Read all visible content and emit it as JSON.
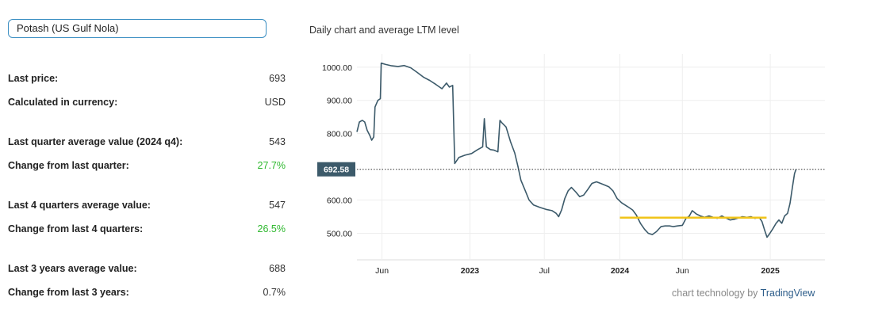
{
  "selector": {
    "value": "Potash (US Gulf Nola)"
  },
  "stats": [
    {
      "label": "Last price:",
      "value": "693",
      "positive": false
    },
    {
      "label": "Calculated in currency:",
      "value": "USD",
      "positive": false
    },
    {
      "label": "Last quarter average value (2024 q4):",
      "value": "543",
      "positive": false
    },
    {
      "label": "Change from last quarter:",
      "value": "27.7%",
      "positive": true
    },
    {
      "label": "Last 4 quarters average value:",
      "value": "547",
      "positive": false
    },
    {
      "label": "Change from last 4 quarters:",
      "value": "26.5%",
      "positive": true
    },
    {
      "label": "Last 3 years average value:",
      "value": "688",
      "positive": false
    },
    {
      "label": "Change from last 3 years:",
      "value": "0.7%",
      "positive": false
    }
  ],
  "chart_title": "Daily chart and average LTM level",
  "credit": {
    "prefix": "chart technology by",
    "brand": "TradingView"
  },
  "colors": {
    "line": "#3c5a6a",
    "ltm": "#f0c419",
    "tag_bg": "#3c5a6a",
    "grid": "#eeeeee",
    "accent": "#3a8ec2",
    "positive": "#2eb82e"
  },
  "chart_data": {
    "type": "line",
    "ylim": [
      420,
      1040
    ],
    "y_ticks": [
      {
        "label": "1000.00",
        "value": 1000
      },
      {
        "label": "900.00",
        "value": 900
      },
      {
        "label": "800.00",
        "value": 800
      },
      {
        "label": "600.00",
        "value": 600
      },
      {
        "label": "500.00",
        "value": 500
      }
    ],
    "xlim": [
      "2022-04-01",
      "2025-05-14"
    ],
    "x_ticks": [
      {
        "label": "Jun",
        "date": "2022-06-01",
        "bold": false
      },
      {
        "label": "2023",
        "date": "2023-01-01",
        "bold": true
      },
      {
        "label": "Jul",
        "date": "2023-07-01",
        "bold": false
      },
      {
        "label": "2024",
        "date": "2024-01-01",
        "bold": true
      },
      {
        "label": "Jun",
        "date": "2024-06-01",
        "bold": false
      },
      {
        "label": "2025",
        "date": "2025-01-01",
        "bold": true
      }
    ],
    "last_price_label": "692.58",
    "last_price": 692.58,
    "series": [
      {
        "points": [
          [
            "2022-04-01",
            805
          ],
          [
            "2022-04-07",
            835
          ],
          [
            "2022-04-14",
            840
          ],
          [
            "2022-04-20",
            835
          ],
          [
            "2022-04-26",
            810
          ],
          [
            "2022-05-02",
            795
          ],
          [
            "2022-05-07",
            780
          ],
          [
            "2022-05-12",
            790
          ],
          [
            "2022-05-15",
            880
          ],
          [
            "2022-05-22",
            900
          ],
          [
            "2022-05-28",
            905
          ],
          [
            "2022-05-30",
            1012
          ],
          [
            "2022-06-10",
            1008
          ],
          [
            "2022-06-25",
            1004
          ],
          [
            "2022-07-10",
            1002
          ],
          [
            "2022-07-25",
            1005
          ],
          [
            "2022-08-10",
            998
          ],
          [
            "2022-08-25",
            985
          ],
          [
            "2022-09-10",
            970
          ],
          [
            "2022-09-25",
            960
          ],
          [
            "2022-10-10",
            948
          ],
          [
            "2022-10-25",
            935
          ],
          [
            "2022-11-05",
            952
          ],
          [
            "2022-11-12",
            940
          ],
          [
            "2022-11-20",
            945
          ],
          [
            "2022-11-25",
            710
          ],
          [
            "2022-12-05",
            728
          ],
          [
            "2022-12-20",
            735
          ],
          [
            "2023-01-05",
            740
          ],
          [
            "2023-01-20",
            752
          ],
          [
            "2023-02-01",
            760
          ],
          [
            "2023-02-05",
            845
          ],
          [
            "2023-02-10",
            760
          ],
          [
            "2023-02-20",
            752
          ],
          [
            "2023-03-01",
            750
          ],
          [
            "2023-03-10",
            745
          ],
          [
            "2023-03-15",
            840
          ],
          [
            "2023-03-20",
            832
          ],
          [
            "2023-03-30",
            820
          ],
          [
            "2023-04-10",
            775
          ],
          [
            "2023-04-20",
            742
          ],
          [
            "2023-04-28",
            700
          ],
          [
            "2023-05-05",
            660
          ],
          [
            "2023-05-15",
            630
          ],
          [
            "2023-05-25",
            600
          ],
          [
            "2023-06-05",
            585
          ],
          [
            "2023-06-20",
            578
          ],
          [
            "2023-07-05",
            572
          ],
          [
            "2023-07-20",
            568
          ],
          [
            "2023-07-30",
            560
          ],
          [
            "2023-08-05",
            550
          ],
          [
            "2023-08-12",
            570
          ],
          [
            "2023-08-20",
            605
          ],
          [
            "2023-08-28",
            628
          ],
          [
            "2023-09-05",
            638
          ],
          [
            "2023-09-15",
            625
          ],
          [
            "2023-09-25",
            610
          ],
          [
            "2023-10-05",
            615
          ],
          [
            "2023-10-15",
            632
          ],
          [
            "2023-10-25",
            650
          ],
          [
            "2023-11-05",
            655
          ],
          [
            "2023-11-15",
            650
          ],
          [
            "2023-11-25",
            645
          ],
          [
            "2023-12-05",
            640
          ],
          [
            "2023-12-15",
            628
          ],
          [
            "2023-12-25",
            605
          ],
          [
            "2024-01-05",
            592
          ],
          [
            "2024-01-20",
            580
          ],
          [
            "2024-02-01",
            570
          ],
          [
            "2024-02-10",
            555
          ],
          [
            "2024-02-20",
            530
          ],
          [
            "2024-03-01",
            512
          ],
          [
            "2024-03-10",
            500
          ],
          [
            "2024-03-20",
            496
          ],
          [
            "2024-03-30",
            505
          ],
          [
            "2024-04-10",
            520
          ],
          [
            "2024-04-20",
            522
          ],
          [
            "2024-05-01",
            522
          ],
          [
            "2024-05-10",
            520
          ],
          [
            "2024-05-20",
            522
          ],
          [
            "2024-06-01",
            524
          ],
          [
            "2024-06-10",
            545
          ],
          [
            "2024-06-18",
            552
          ],
          [
            "2024-06-25",
            568
          ],
          [
            "2024-07-05",
            558
          ],
          [
            "2024-07-15",
            552
          ],
          [
            "2024-07-25",
            548
          ],
          [
            "2024-08-05",
            552
          ],
          [
            "2024-08-15",
            548
          ],
          [
            "2024-08-25",
            545
          ],
          [
            "2024-09-05",
            552
          ],
          [
            "2024-09-15",
            546
          ],
          [
            "2024-09-25",
            540
          ],
          [
            "2024-10-05",
            542
          ],
          [
            "2024-10-15",
            546
          ],
          [
            "2024-10-25",
            550
          ],
          [
            "2024-11-05",
            548
          ],
          [
            "2024-11-15",
            550
          ],
          [
            "2024-11-25",
            545
          ],
          [
            "2024-12-05",
            548
          ],
          [
            "2024-12-12",
            535
          ],
          [
            "2024-12-18",
            510
          ],
          [
            "2024-12-24",
            488
          ],
          [
            "2024-12-30",
            498
          ],
          [
            "2025-01-08",
            515
          ],
          [
            "2025-01-15",
            530
          ],
          [
            "2025-01-22",
            540
          ],
          [
            "2025-01-29",
            530
          ],
          [
            "2025-02-05",
            552
          ],
          [
            "2025-02-12",
            560
          ],
          [
            "2025-02-18",
            590
          ],
          [
            "2025-02-24",
            640
          ],
          [
            "2025-03-01",
            680
          ],
          [
            "2025-03-05",
            693
          ]
        ]
      },
      {
        "type": "ltm_average",
        "points": [
          [
            "2024-01-01",
            547
          ],
          [
            "2024-12-23",
            547
          ]
        ]
      }
    ]
  }
}
